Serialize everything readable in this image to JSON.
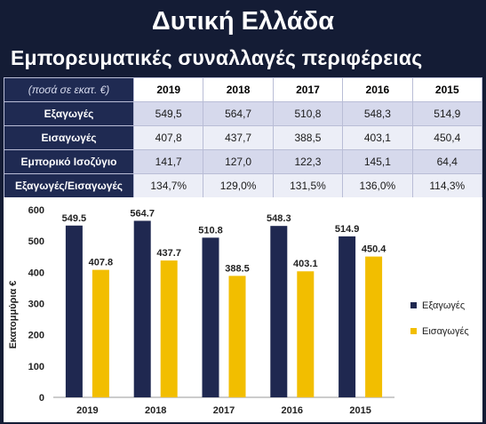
{
  "page": {
    "title": "Δυτική Ελλάδα",
    "subtitle": "Εμπορευματικές συναλλαγές περιφέρειας"
  },
  "table": {
    "unit_label": "(ποσά σε εκατ. €)",
    "columns": [
      "2019",
      "2018",
      "2017",
      "2016",
      "2015"
    ],
    "rows": [
      {
        "label": "Εξαγωγές",
        "values": [
          "549,5",
          "564,7",
          "510,8",
          "548,3",
          "514,9"
        ]
      },
      {
        "label": "Εισαγωγές",
        "values": [
          "407,8",
          "437,7",
          "388,5",
          "403,1",
          "450,4"
        ]
      },
      {
        "label": "Εμπορικό Ισοζύγιο",
        "values": [
          "141,7",
          "127,0",
          "122,3",
          "145,1",
          "64,4"
        ]
      },
      {
        "label": "Εξαγωγές/Εισαγωγές",
        "values": [
          "134,7%",
          "129,0%",
          "131,5%",
          "136,0%",
          "114,3%"
        ]
      }
    ]
  },
  "chart_data": {
    "type": "bar",
    "categories": [
      "2019",
      "2018",
      "2017",
      "2016",
      "2015"
    ],
    "series": [
      {
        "name": "Εξαγωγές",
        "values": [
          549.5,
          564.7,
          510.8,
          548.3,
          514.9
        ],
        "labels": [
          "549.5",
          "564.7",
          "510.8",
          "548.3",
          "514.9"
        ],
        "color": "#1f2850"
      },
      {
        "name": "Εισαγωγές",
        "values": [
          407.8,
          437.7,
          388.5,
          403.1,
          450.4
        ],
        "labels": [
          "407.8",
          "437.7",
          "388.5",
          "403.1",
          "450.4"
        ],
        "color": "#f2be00"
      }
    ],
    "ylabel": "Εκατομμύρια €",
    "ylim": [
      0,
      600
    ],
    "yticks": [
      "0",
      "100",
      "200",
      "300",
      "400",
      "500",
      "600"
    ],
    "legend": "right",
    "grid": false
  }
}
